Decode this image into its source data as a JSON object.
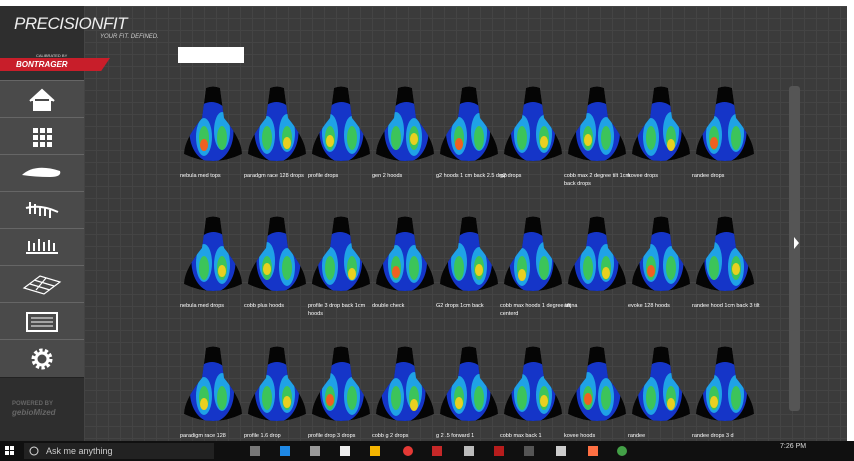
{
  "header": {
    "brand": "PRECISIONFIT",
    "tagline": "YOUR FIT. DEFINED.",
    "calibrated": "CALIBRATED BY",
    "partner": "BONTRAGER"
  },
  "saddles": [
    "nebula med tops",
    "paradgm race 128 drops",
    "profile drops",
    "gen 2 hoods",
    "g2 hoods 1 cm back 2.5 drop",
    "g2 drops",
    "cobb max 2 degree tilt  1cm back drops",
    "kovee drops",
    "randee drops",
    "nebula med drops",
    "cobb plus hoods",
    "profile 3 drop back 1cm hoods",
    "double check",
    "G2 drops 1cm back",
    "cobb max hoods 1 degree tilt centerd",
    "anjna",
    "evoke 128 hoods",
    "randee hood 1cm back 3 tilt",
    "paradigm race 128",
    "profile 1.6 drop",
    "profile drop 3 drops",
    "cobb g 2 drops",
    "g 2 .5 forward 1",
    "cobb max back 1",
    "kovee hoods",
    "randee",
    "randee drops 3 d"
  ],
  "footer": {
    "powered_by": "POWERED BY",
    "maker": "gebioMized"
  },
  "taskbar": {
    "search": "Ask me anything",
    "time": "7:26 PM"
  }
}
